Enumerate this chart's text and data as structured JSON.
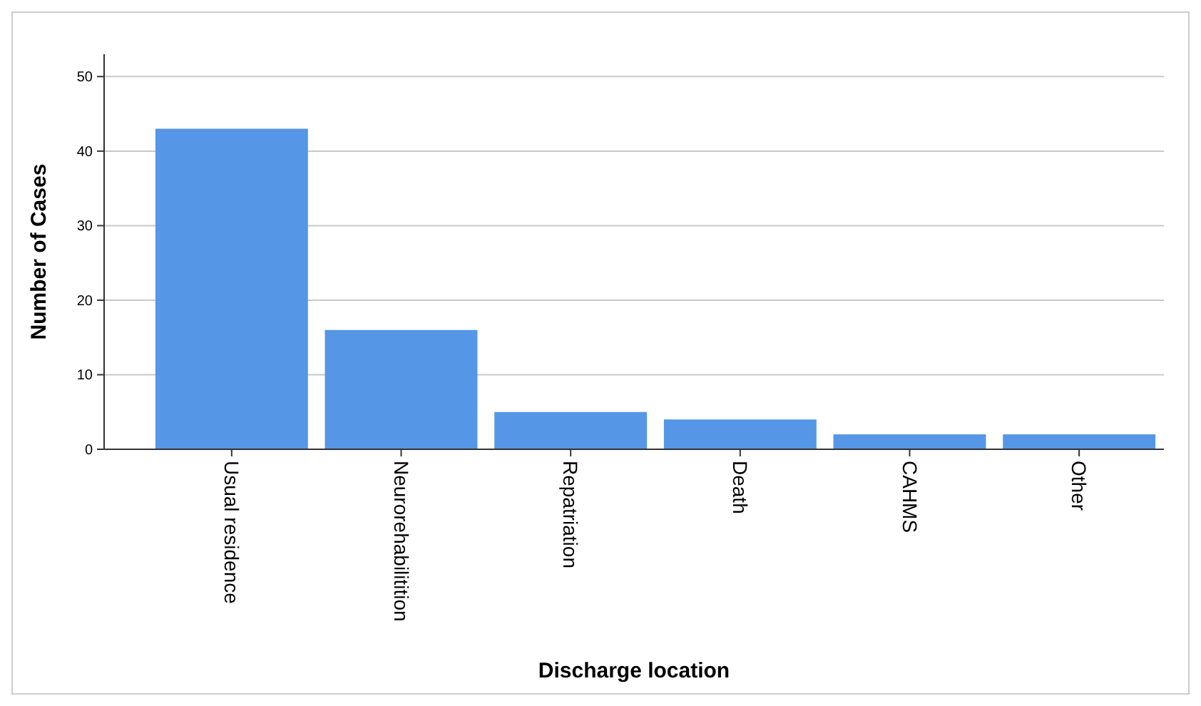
{
  "chart_data": {
    "type": "bar",
    "xlabel": "Discharge location",
    "ylabel": "Number of Cases",
    "categories": [
      "Usual residence",
      "Neurorehabilitition",
      "Repatriation",
      "Death",
      "CAHMS",
      "Other"
    ],
    "values": [
      43,
      16,
      5,
      4,
      2,
      2
    ],
    "color": "#5596e6",
    "ylim": [
      0,
      53
    ],
    "yticks": [
      0,
      10,
      20,
      30,
      40,
      50
    ],
    "grid": "y"
  }
}
